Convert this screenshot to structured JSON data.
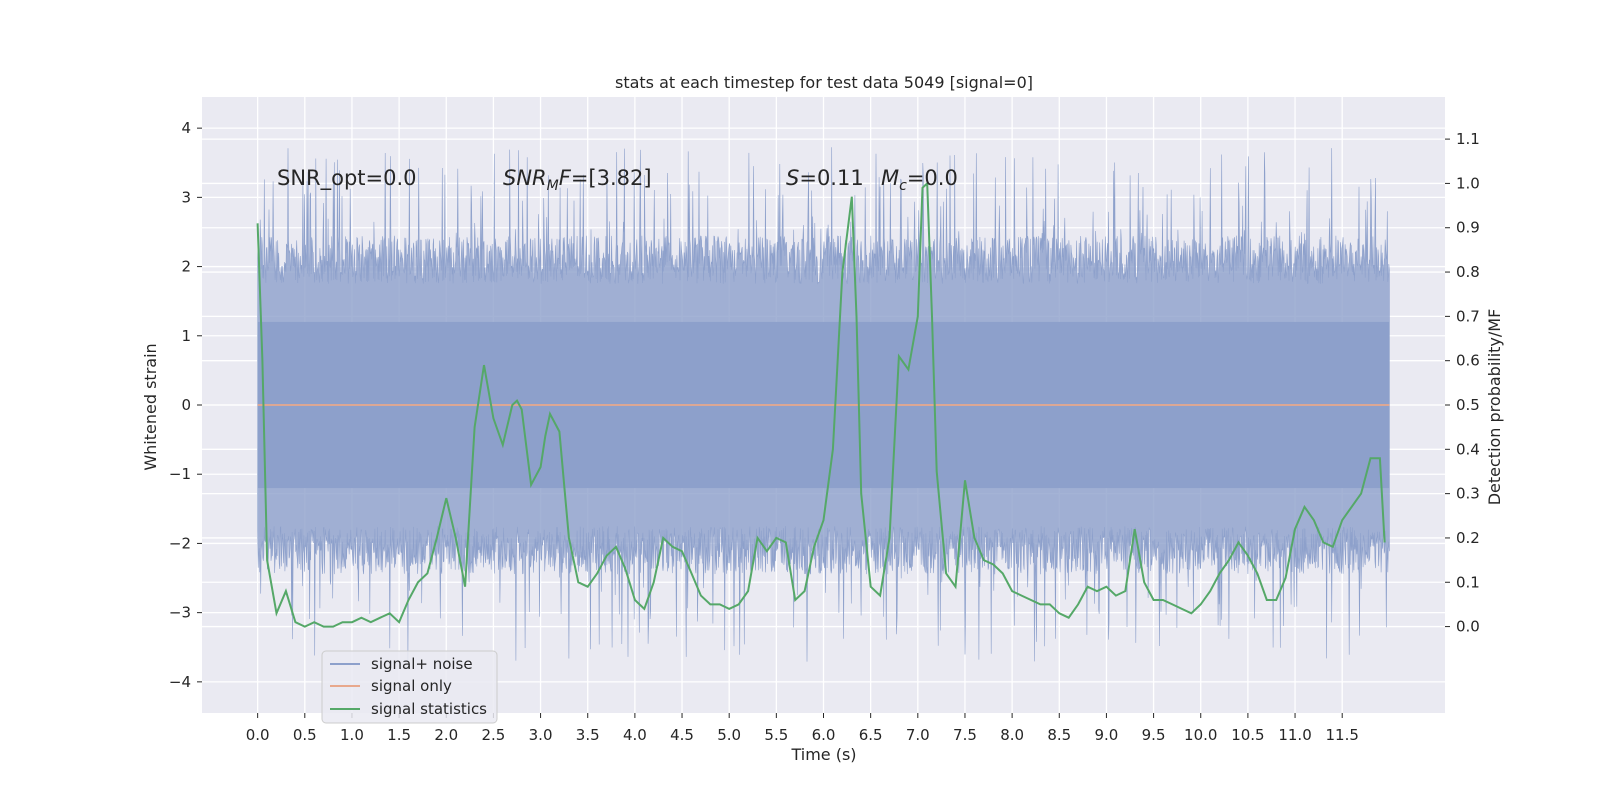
{
  "chart_data": {
    "type": "line",
    "title": "stats at each timestep for test data 5049 [signal=0]",
    "xlabel": "Time (s)",
    "ylabel": "Whitened strain",
    "y2label": "Detection probability/MF",
    "xlim": [
      -0.59,
      12.59
    ],
    "ylim": [
      -4.45,
      4.45
    ],
    "y2lim": [
      -0.195,
      1.195
    ],
    "grid": true,
    "x_ticks": [
      0.0,
      0.5,
      1.0,
      1.5,
      2.0,
      2.5,
      3.0,
      3.5,
      4.0,
      4.5,
      5.0,
      5.5,
      6.0,
      6.5,
      7.0,
      7.5,
      8.0,
      8.5,
      9.0,
      9.5,
      10.0,
      10.5,
      11.0,
      11.5
    ],
    "x_tick_labels": [
      "0.0",
      "0.5",
      "1.0",
      "1.5",
      "2.0",
      "2.5",
      "3.0",
      "3.5",
      "4.0",
      "4.5",
      "5.0",
      "5.5",
      "6.0",
      "6.5",
      "7.0",
      "7.5",
      "8.0",
      "8.5",
      "9.0",
      "9.5",
      "10.0",
      "10.5",
      "11.0",
      "11.5"
    ],
    "y_ticks": [
      -4,
      -3,
      -2,
      -1,
      0,
      1,
      2,
      3,
      4
    ],
    "y_tick_labels": [
      "−4",
      "−3",
      "−2",
      "−1",
      "0",
      "1",
      "2",
      "3",
      "4"
    ],
    "y2_ticks": [
      0.0,
      0.1,
      0.2,
      0.3,
      0.4,
      0.5,
      0.6,
      0.7,
      0.8,
      0.9,
      1.0,
      1.1
    ],
    "y2_tick_labels": [
      "0.0",
      "0.1",
      "0.2",
      "0.3",
      "0.4",
      "0.5",
      "0.6",
      "0.7",
      "0.8",
      "0.9",
      "1.0",
      "1.1"
    ],
    "annotations": {
      "snr_opt": "SNR_opt=0.0",
      "snr_mf_base": "SNR",
      "snr_mf_sub": "M",
      "snr_mf_tail": "F",
      "snr_mf_value": "=[3.82]",
      "s_symbol": "S",
      "s_value": "=0.11",
      "mc_base": "M",
      "mc_sub": "c",
      "mc_value": "=0.0"
    },
    "legend": {
      "placement": "lower-left",
      "entries": [
        {
          "label": "signal+ noise",
          "color": "#8da0cb"
        },
        {
          "label": "signal only",
          "color": "#e8a88c"
        },
        {
          "label": "signal statistics",
          "color": "#55a868"
        }
      ]
    },
    "series": [
      {
        "name": "signal+ noise",
        "color": "#8da0cb",
        "axis": "left",
        "kind": "dense-noise",
        "x_range": [
          0.0,
          12.0
        ],
        "core_range": [
          -1.2,
          1.2
        ],
        "envelope_range": [
          -4.05,
          3.95
        ]
      },
      {
        "name": "signal only",
        "color": "#e8a88c",
        "axis": "left",
        "x": [
          0.0,
          12.0
        ],
        "y": [
          0.0,
          0.0
        ]
      },
      {
        "name": "signal statistics",
        "color": "#55a868",
        "axis": "right",
        "x": [
          0.0,
          0.05,
          0.1,
          0.2,
          0.3,
          0.4,
          0.5,
          0.6,
          0.7,
          0.8,
          0.9,
          1.0,
          1.1,
          1.2,
          1.3,
          1.4,
          1.5,
          1.6,
          1.7,
          1.8,
          1.9,
          2.0,
          2.1,
          2.2,
          2.3,
          2.4,
          2.5,
          2.6,
          2.7,
          2.75,
          2.8,
          2.9,
          3.0,
          3.05,
          3.1,
          3.2,
          3.3,
          3.4,
          3.5,
          3.6,
          3.7,
          3.8,
          3.9,
          4.0,
          4.1,
          4.2,
          4.3,
          4.4,
          4.5,
          4.6,
          4.7,
          4.8,
          4.9,
          5.0,
          5.1,
          5.2,
          5.3,
          5.4,
          5.5,
          5.6,
          5.7,
          5.8,
          5.9,
          6.0,
          6.1,
          6.2,
          6.3,
          6.35,
          6.4,
          6.5,
          6.6,
          6.7,
          6.8,
          6.9,
          7.0,
          7.05,
          7.1,
          7.15,
          7.2,
          7.3,
          7.4,
          7.5,
          7.6,
          7.7,
          7.8,
          7.9,
          8.0,
          8.1,
          8.2,
          8.3,
          8.4,
          8.5,
          8.6,
          8.7,
          8.8,
          8.9,
          9.0,
          9.1,
          9.2,
          9.3,
          9.4,
          9.5,
          9.6,
          9.7,
          9.8,
          9.9,
          10.0,
          10.1,
          10.2,
          10.3,
          10.4,
          10.5,
          10.6,
          10.7,
          10.8,
          10.9,
          11.0,
          11.1,
          11.2,
          11.3,
          11.4,
          11.5,
          11.6,
          11.7,
          11.8,
          11.9,
          11.95
        ],
        "y": [
          0.91,
          0.6,
          0.15,
          0.03,
          0.08,
          0.01,
          0.0,
          0.01,
          0.0,
          0.0,
          0.01,
          0.01,
          0.02,
          0.01,
          0.02,
          0.03,
          0.01,
          0.06,
          0.1,
          0.12,
          0.2,
          0.29,
          0.2,
          0.09,
          0.45,
          0.59,
          0.47,
          0.41,
          0.5,
          0.51,
          0.49,
          0.32,
          0.36,
          0.43,
          0.48,
          0.44,
          0.2,
          0.1,
          0.09,
          0.12,
          0.16,
          0.18,
          0.13,
          0.06,
          0.04,
          0.1,
          0.2,
          0.18,
          0.17,
          0.12,
          0.07,
          0.05,
          0.05,
          0.04,
          0.05,
          0.08,
          0.2,
          0.17,
          0.2,
          0.19,
          0.06,
          0.08,
          0.18,
          0.24,
          0.4,
          0.8,
          0.97,
          0.7,
          0.3,
          0.09,
          0.07,
          0.2,
          0.61,
          0.58,
          0.7,
          0.99,
          1.0,
          0.7,
          0.35,
          0.12,
          0.09,
          0.33,
          0.2,
          0.15,
          0.14,
          0.12,
          0.08,
          0.07,
          0.06,
          0.05,
          0.05,
          0.03,
          0.02,
          0.05,
          0.09,
          0.08,
          0.09,
          0.07,
          0.08,
          0.22,
          0.1,
          0.06,
          0.06,
          0.05,
          0.04,
          0.03,
          0.05,
          0.08,
          0.12,
          0.15,
          0.19,
          0.16,
          0.12,
          0.06,
          0.06,
          0.11,
          0.22,
          0.27,
          0.24,
          0.19,
          0.18,
          0.24,
          0.27,
          0.3,
          0.38,
          0.38,
          0.19
        ]
      }
    ]
  }
}
